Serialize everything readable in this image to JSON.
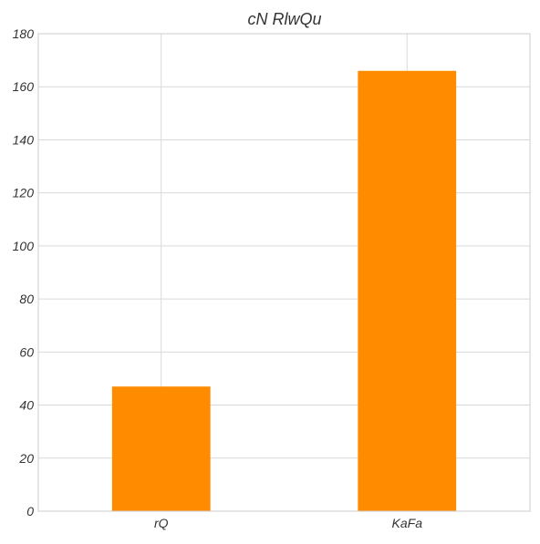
{
  "chart_data": {
    "type": "bar",
    "title": "cN RlwQu",
    "xlabel": "",
    "ylabel": "",
    "categories": [
      "rQ",
      "KaFa"
    ],
    "values": [
      47,
      166
    ],
    "ylim": [
      0,
      180
    ],
    "yticks": [
      0,
      20,
      40,
      60,
      80,
      100,
      120,
      140,
      160,
      180
    ],
    "grid": true,
    "bar_color": "#ff8c00",
    "legend": "none"
  }
}
